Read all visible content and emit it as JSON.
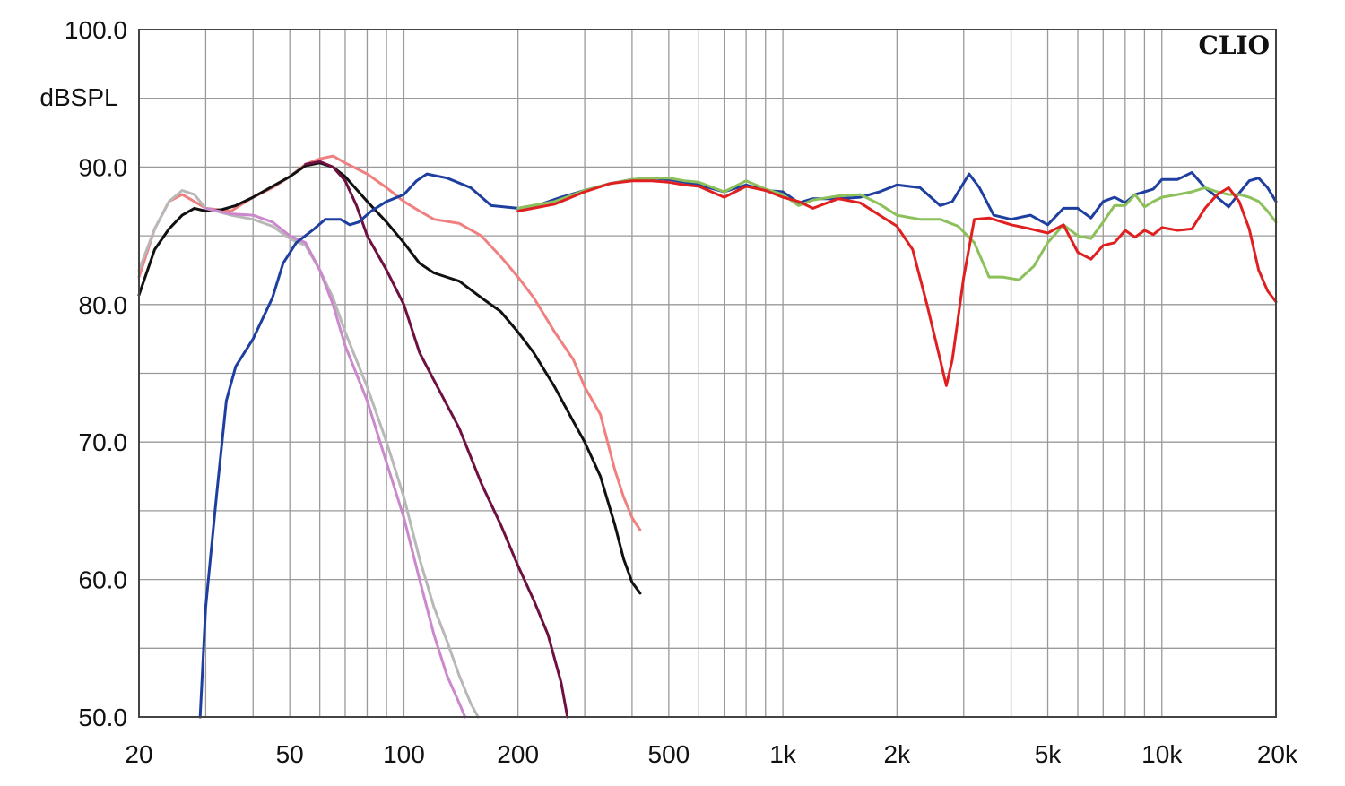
{
  "chart_data": {
    "type": "line",
    "title": "",
    "brand_label": "CLIO",
    "ylabel": "dBSPL",
    "xlabel": "",
    "x_scale": "log",
    "xlim": [
      20,
      20000
    ],
    "ylim": [
      50,
      100
    ],
    "grid": true,
    "y_ticks": [
      {
        "value": 100,
        "label": "100.0"
      },
      {
        "value": 90,
        "label": "90.0"
      },
      {
        "value": 80,
        "label": "80.0"
      },
      {
        "value": 70,
        "label": "70.0"
      },
      {
        "value": 60,
        "label": "60.0"
      },
      {
        "value": 50,
        "label": "50.0"
      }
    ],
    "x_ticks": [
      {
        "value": 20,
        "label": "20"
      },
      {
        "value": 50,
        "label": "50"
      },
      {
        "value": 100,
        "label": "100"
      },
      {
        "value": 200,
        "label": "200"
      },
      {
        "value": 500,
        "label": "500"
      },
      {
        "value": 1000,
        "label": "1k"
      },
      {
        "value": 2000,
        "label": "2k"
      },
      {
        "value": 5000,
        "label": "5k"
      },
      {
        "value": 10000,
        "label": "10k"
      },
      {
        "value": 20000,
        "label": "20k"
      }
    ],
    "series": [
      {
        "color": "#f08080",
        "points": [
          [
            20,
            82
          ],
          [
            22,
            85.5
          ],
          [
            24,
            87.5
          ],
          [
            26,
            88
          ],
          [
            28,
            87.5
          ],
          [
            30,
            87
          ],
          [
            35,
            86.8
          ],
          [
            40,
            87.8
          ],
          [
            45,
            88.5
          ],
          [
            50,
            89.3
          ],
          [
            55,
            90.2
          ],
          [
            60,
            90.6
          ],
          [
            65,
            90.8
          ],
          [
            70,
            90.3
          ],
          [
            80,
            89.5
          ],
          [
            90,
            88.5
          ],
          [
            100,
            87.5
          ],
          [
            110,
            86.8
          ],
          [
            120,
            86.2
          ],
          [
            140,
            85.9
          ],
          [
            160,
            85
          ],
          [
            180,
            83.5
          ],
          [
            200,
            82
          ],
          [
            220,
            80.5
          ],
          [
            250,
            78
          ],
          [
            280,
            76
          ],
          [
            300,
            74
          ],
          [
            330,
            72
          ],
          [
            360,
            68
          ],
          [
            380,
            66
          ],
          [
            400,
            64.5
          ],
          [
            420,
            63.6
          ]
        ]
      },
      {
        "color": "#111111",
        "points": [
          [
            20,
            80.7
          ],
          [
            22,
            84
          ],
          [
            24,
            85.5
          ],
          [
            26,
            86.5
          ],
          [
            28,
            87
          ],
          [
            30,
            86.8
          ],
          [
            33,
            86.9
          ],
          [
            36,
            87.2
          ],
          [
            40,
            87.8
          ],
          [
            45,
            88.6
          ],
          [
            50,
            89.3
          ],
          [
            55,
            90.1
          ],
          [
            60,
            90.3
          ],
          [
            65,
            90
          ],
          [
            70,
            89.3
          ],
          [
            80,
            87.5
          ],
          [
            90,
            86
          ],
          [
            100,
            84.5
          ],
          [
            110,
            83
          ],
          [
            120,
            82.3
          ],
          [
            140,
            81.7
          ],
          [
            160,
            80.5
          ],
          [
            180,
            79.5
          ],
          [
            200,
            78
          ],
          [
            220,
            76.5
          ],
          [
            250,
            74
          ],
          [
            280,
            71.5
          ],
          [
            300,
            70
          ],
          [
            330,
            67.5
          ],
          [
            360,
            64
          ],
          [
            380,
            61.5
          ],
          [
            400,
            59.8
          ],
          [
            420,
            59
          ]
        ]
      },
      {
        "color": "#6e1040",
        "points": [
          [
            55,
            90.2
          ],
          [
            60,
            90.4
          ],
          [
            65,
            90
          ],
          [
            70,
            89
          ],
          [
            75,
            87.2
          ],
          [
            80,
            85
          ],
          [
            90,
            82.5
          ],
          [
            100,
            80
          ],
          [
            110,
            76.5
          ],
          [
            120,
            74.5
          ],
          [
            140,
            71
          ],
          [
            160,
            67
          ],
          [
            180,
            64
          ],
          [
            200,
            61
          ],
          [
            220,
            58.5
          ],
          [
            240,
            56
          ],
          [
            260,
            52.5
          ],
          [
            270,
            50
          ]
        ]
      },
      {
        "color": "#b8b8b8",
        "points": [
          [
            20,
            82.5
          ],
          [
            22,
            85.5
          ],
          [
            24,
            87.5
          ],
          [
            26,
            88.3
          ],
          [
            28,
            88
          ],
          [
            30,
            87
          ],
          [
            35,
            86.5
          ],
          [
            40,
            86.2
          ],
          [
            45,
            85.7
          ],
          [
            50,
            84.8
          ],
          [
            55,
            84.3
          ],
          [
            60,
            82.5
          ],
          [
            65,
            80.5
          ],
          [
            70,
            78
          ],
          [
            80,
            74
          ],
          [
            90,
            70
          ],
          [
            100,
            66
          ],
          [
            110,
            61.5
          ],
          [
            120,
            58
          ],
          [
            130,
            55.5
          ],
          [
            140,
            53
          ],
          [
            150,
            51
          ],
          [
            157,
            50
          ]
        ]
      },
      {
        "color": "#cc88cc",
        "points": [
          [
            30,
            87
          ],
          [
            35,
            86.6
          ],
          [
            40,
            86.5
          ],
          [
            45,
            86
          ],
          [
            50,
            85
          ],
          [
            55,
            84.5
          ],
          [
            60,
            82.5
          ],
          [
            65,
            80
          ],
          [
            70,
            77
          ],
          [
            80,
            73
          ],
          [
            90,
            68.5
          ],
          [
            100,
            64.5
          ],
          [
            110,
            60
          ],
          [
            120,
            56
          ],
          [
            130,
            53
          ],
          [
            140,
            51
          ],
          [
            145,
            50
          ]
        ]
      },
      {
        "color": "#1f3fa0",
        "points": [
          [
            29,
            50
          ],
          [
            30,
            58
          ],
          [
            32,
            66
          ],
          [
            34,
            73
          ],
          [
            36,
            75.5
          ],
          [
            40,
            77.5
          ],
          [
            45,
            80.5
          ],
          [
            48,
            83
          ],
          [
            52,
            84.5
          ],
          [
            58,
            85.5
          ],
          [
            62,
            86.2
          ],
          [
            68,
            86.2
          ],
          [
            72,
            85.8
          ],
          [
            76,
            86
          ],
          [
            82,
            86.8
          ],
          [
            90,
            87.5
          ],
          [
            100,
            88
          ],
          [
            108,
            89
          ],
          [
            115,
            89.5
          ],
          [
            130,
            89.2
          ],
          [
            150,
            88.5
          ],
          [
            170,
            87.2
          ],
          [
            200,
            87
          ],
          [
            230,
            87.3
          ],
          [
            260,
            87.8
          ],
          [
            300,
            88.3
          ],
          [
            350,
            88.8
          ],
          [
            400,
            89.1
          ],
          [
            450,
            89.2
          ],
          [
            500,
            89.1
          ],
          [
            550,
            88.9
          ],
          [
            600,
            88.7
          ],
          [
            700,
            88.2
          ],
          [
            800,
            88.7
          ],
          [
            900,
            88.3
          ],
          [
            1000,
            88.2
          ],
          [
            1100,
            87.4
          ],
          [
            1200,
            87.7
          ],
          [
            1400,
            87.7
          ],
          [
            1600,
            87.8
          ],
          [
            1800,
            88.2
          ],
          [
            2000,
            88.7
          ],
          [
            2300,
            88.5
          ],
          [
            2600,
            87.2
          ],
          [
            2800,
            87.5
          ],
          [
            3100,
            89.5
          ],
          [
            3300,
            88.5
          ],
          [
            3600,
            86.5
          ],
          [
            4000,
            86.2
          ],
          [
            4500,
            86.5
          ],
          [
            5000,
            85.8
          ],
          [
            5500,
            87
          ],
          [
            6000,
            87
          ],
          [
            6500,
            86.3
          ],
          [
            7000,
            87.5
          ],
          [
            7500,
            87.8
          ],
          [
            8000,
            87.4
          ],
          [
            8500,
            88
          ],
          [
            9000,
            88.2
          ],
          [
            9500,
            88.4
          ],
          [
            10000,
            89.1
          ],
          [
            11000,
            89.1
          ],
          [
            12000,
            89.6
          ],
          [
            13000,
            88.5
          ],
          [
            14000,
            87.8
          ],
          [
            15000,
            87.1
          ],
          [
            16000,
            88.1
          ],
          [
            17000,
            89
          ],
          [
            18000,
            89.2
          ],
          [
            19000,
            88.5
          ],
          [
            20000,
            87.5
          ]
        ]
      },
      {
        "color": "#8cc05a",
        "points": [
          [
            200,
            87
          ],
          [
            250,
            87.5
          ],
          [
            300,
            88.3
          ],
          [
            350,
            88.8
          ],
          [
            400,
            89.1
          ],
          [
            450,
            89.2
          ],
          [
            500,
            89.2
          ],
          [
            550,
            89
          ],
          [
            600,
            88.9
          ],
          [
            700,
            88.2
          ],
          [
            800,
            89
          ],
          [
            900,
            88.4
          ],
          [
            1000,
            88
          ],
          [
            1100,
            87.2
          ],
          [
            1200,
            87.6
          ],
          [
            1400,
            87.9
          ],
          [
            1600,
            88
          ],
          [
            1800,
            87.3
          ],
          [
            2000,
            86.5
          ],
          [
            2300,
            86.2
          ],
          [
            2600,
            86.2
          ],
          [
            2900,
            85.7
          ],
          [
            3200,
            84.5
          ],
          [
            3500,
            82
          ],
          [
            3800,
            82
          ],
          [
            4200,
            81.8
          ],
          [
            4600,
            82.8
          ],
          [
            5000,
            84.5
          ],
          [
            5500,
            85.8
          ],
          [
            6000,
            85
          ],
          [
            6500,
            84.8
          ],
          [
            7000,
            86
          ],
          [
            7500,
            87.2
          ],
          [
            8000,
            87.2
          ],
          [
            8500,
            88
          ],
          [
            9000,
            87.1
          ],
          [
            9500,
            87.5
          ],
          [
            10000,
            87.8
          ],
          [
            11000,
            88
          ],
          [
            12000,
            88.2
          ],
          [
            13000,
            88.5
          ],
          [
            14000,
            88.2
          ],
          [
            15000,
            88
          ],
          [
            16000,
            88
          ],
          [
            17000,
            87.8
          ],
          [
            18000,
            87.5
          ],
          [
            19000,
            86.8
          ],
          [
            20000,
            86
          ]
        ]
      },
      {
        "color": "#e02020",
        "points": [
          [
            200,
            86.8
          ],
          [
            250,
            87.3
          ],
          [
            300,
            88.2
          ],
          [
            350,
            88.8
          ],
          [
            400,
            89
          ],
          [
            450,
            89
          ],
          [
            500,
            88.9
          ],
          [
            550,
            88.7
          ],
          [
            600,
            88.6
          ],
          [
            700,
            87.8
          ],
          [
            800,
            88.6
          ],
          [
            900,
            88.3
          ],
          [
            1000,
            87.8
          ],
          [
            1100,
            87.5
          ],
          [
            1200,
            87
          ],
          [
            1400,
            87.7
          ],
          [
            1600,
            87.4
          ],
          [
            1800,
            86.5
          ],
          [
            2000,
            85.7
          ],
          [
            2200,
            84
          ],
          [
            2400,
            80
          ],
          [
            2600,
            76
          ],
          [
            2700,
            74.1
          ],
          [
            2800,
            76
          ],
          [
            3000,
            82
          ],
          [
            3200,
            86.2
          ],
          [
            3500,
            86.3
          ],
          [
            4000,
            85.8
          ],
          [
            4500,
            85.5
          ],
          [
            5000,
            85.2
          ],
          [
            5500,
            85.8
          ],
          [
            6000,
            83.8
          ],
          [
            6500,
            83.3
          ],
          [
            7000,
            84.3
          ],
          [
            7500,
            84.5
          ],
          [
            8000,
            85.4
          ],
          [
            8500,
            84.9
          ],
          [
            9000,
            85.4
          ],
          [
            9500,
            85.1
          ],
          [
            10000,
            85.6
          ],
          [
            11000,
            85.4
          ],
          [
            12000,
            85.5
          ],
          [
            13000,
            87
          ],
          [
            14000,
            88
          ],
          [
            15000,
            88.5
          ],
          [
            16000,
            87.5
          ],
          [
            17000,
            85.5
          ],
          [
            18000,
            82.5
          ],
          [
            19000,
            81
          ],
          [
            20000,
            80.2
          ]
        ]
      }
    ]
  }
}
